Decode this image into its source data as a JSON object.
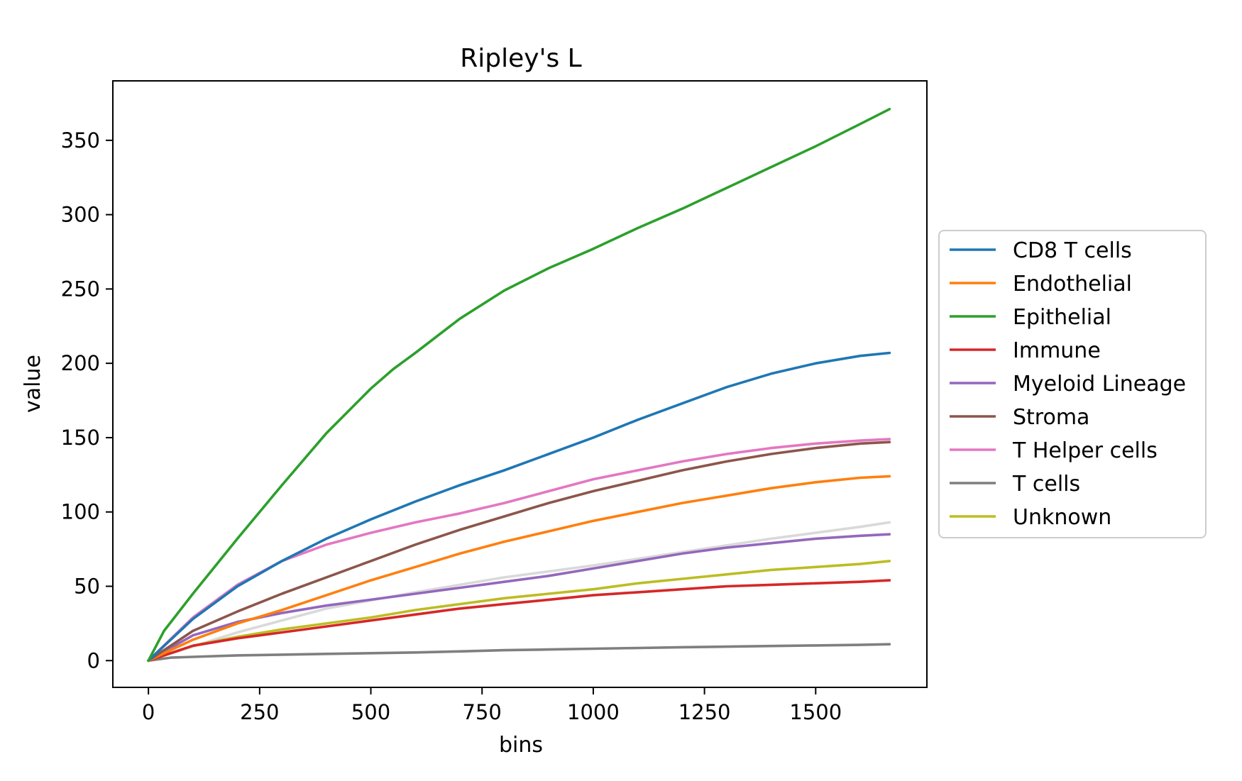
{
  "chart_data": {
    "type": "line",
    "title": "Ripley's L",
    "xlabel": "bins",
    "ylabel": "value",
    "xlim": [
      -80,
      1750
    ],
    "ylim": [
      -18,
      390
    ],
    "xticks": [
      0,
      250,
      500,
      750,
      1000,
      1250,
      1500
    ],
    "xtick_labels": [
      "0",
      "250",
      "500",
      "750",
      "1000",
      "1250",
      "1500"
    ],
    "yticks": [
      0,
      50,
      100,
      150,
      200,
      250,
      300,
      350
    ],
    "ytick_labels": [
      "0",
      "50",
      "100",
      "150",
      "200",
      "250",
      "300",
      "350"
    ],
    "legend_position": "center-right (outside plot area)",
    "series": [
      {
        "name": "CD8 T cells",
        "color": "#1f77b4",
        "x": [
          0,
          100,
          200,
          300,
          400,
          500,
          600,
          700,
          800,
          900,
          1000,
          1100,
          1200,
          1300,
          1400,
          1500,
          1600,
          1666
        ],
        "y": [
          0,
          28,
          50,
          67,
          82,
          95,
          107,
          118,
          128,
          139,
          150,
          162,
          173,
          184,
          193,
          200,
          205,
          207
        ]
      },
      {
        "name": "Endothelial",
        "color": "#ff7f0e",
        "x": [
          0,
          100,
          200,
          300,
          400,
          500,
          600,
          700,
          800,
          900,
          1000,
          1100,
          1200,
          1300,
          1400,
          1500,
          1600,
          1666
        ],
        "y": [
          0,
          14,
          25,
          34,
          44,
          54,
          63,
          72,
          80,
          87,
          94,
          100,
          106,
          111,
          116,
          120,
          123,
          124
        ]
      },
      {
        "name": "Epithelial",
        "color": "#2ca02c",
        "x": [
          0,
          35,
          100,
          200,
          300,
          400,
          500,
          550,
          600,
          700,
          800,
          900,
          1000,
          1100,
          1200,
          1300,
          1400,
          1500,
          1600,
          1666
        ],
        "y": [
          0,
          20,
          45,
          82,
          118,
          153,
          183,
          196,
          207,
          230,
          249,
          264,
          277,
          291,
          304,
          318,
          332,
          346,
          361,
          371
        ]
      },
      {
        "name": "Immune",
        "color": "#d62728",
        "x": [
          0,
          100,
          200,
          300,
          400,
          500,
          600,
          700,
          800,
          900,
          1000,
          1100,
          1200,
          1300,
          1400,
          1500,
          1600,
          1666
        ],
        "y": [
          0,
          10,
          15,
          19,
          23,
          27,
          31,
          35,
          38,
          41,
          44,
          46,
          48,
          50,
          51,
          52,
          53,
          54
        ]
      },
      {
        "name": "Myeloid Lineage",
        "color": "#9467bd",
        "x": [
          0,
          100,
          200,
          300,
          400,
          500,
          600,
          700,
          800,
          900,
          1000,
          1100,
          1200,
          1300,
          1400,
          1500,
          1600,
          1666
        ],
        "y": [
          0,
          17,
          26,
          32,
          37,
          41,
          45,
          49,
          53,
          57,
          62,
          67,
          72,
          76,
          79,
          82,
          84,
          85
        ]
      },
      {
        "name": "Stroma",
        "color": "#8c564b",
        "x": [
          0,
          100,
          200,
          300,
          400,
          500,
          600,
          700,
          800,
          900,
          1000,
          1100,
          1200,
          1300,
          1400,
          1500,
          1600,
          1666
        ],
        "y": [
          0,
          20,
          33,
          45,
          56,
          67,
          78,
          88,
          97,
          106,
          114,
          121,
          128,
          134,
          139,
          143,
          146,
          147
        ]
      },
      {
        "name": "T Helper cells",
        "color": "#e377c2",
        "x": [
          0,
          100,
          200,
          300,
          400,
          500,
          600,
          700,
          800,
          900,
          1000,
          1100,
          1200,
          1300,
          1400,
          1500,
          1600,
          1666
        ],
        "y": [
          0,
          29,
          51,
          67,
          78,
          86,
          93,
          99,
          106,
          114,
          122,
          128,
          134,
          139,
          143,
          146,
          148,
          149
        ]
      },
      {
        "name": "T cells",
        "color": "#7f7f7f",
        "x": [
          0,
          50,
          100,
          200,
          300,
          400,
          500,
          600,
          700,
          800,
          900,
          1000,
          1100,
          1200,
          1300,
          1400,
          1500,
          1600,
          1666
        ],
        "y": [
          0,
          2,
          2.5,
          3.5,
          4,
          4.5,
          5,
          5.5,
          6.2,
          7,
          7.5,
          8,
          8.5,
          9,
          9.4,
          9.8,
          10.2,
          10.6,
          11
        ]
      },
      {
        "name": "Unknown",
        "color": "#bcbd22",
        "x": [
          0,
          100,
          200,
          300,
          400,
          500,
          600,
          700,
          800,
          900,
          1000,
          1100,
          1200,
          1300,
          1400,
          1500,
          1600,
          1666
        ],
        "y": [
          0,
          10,
          16,
          21,
          25,
          29,
          34,
          38,
          42,
          45,
          48,
          52,
          55,
          58,
          61,
          63,
          65,
          67
        ]
      }
    ],
    "unlabeled_series": [
      {
        "color": "#d9d9d9",
        "x": [
          0,
          200,
          400,
          600,
          800,
          1000,
          1200,
          1400,
          1600,
          1666
        ],
        "y": [
          0,
          19,
          35,
          46,
          56,
          64,
          73,
          82,
          90,
          93
        ]
      }
    ]
  }
}
